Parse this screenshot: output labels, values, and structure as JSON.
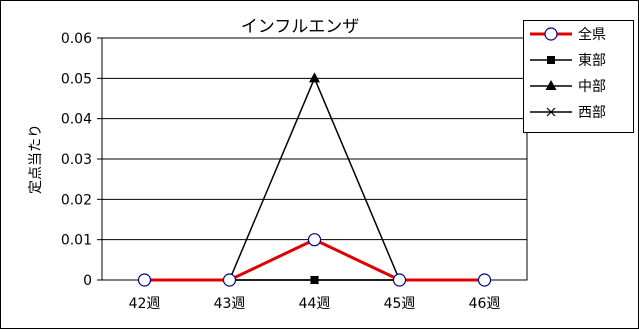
{
  "chart_data": {
    "type": "line",
    "title": "インフルエンザ",
    "ylabel": "定点当たり",
    "xlabel": "",
    "categories": [
      "42週",
      "43週",
      "44週",
      "45週",
      "46週"
    ],
    "ylim": [
      0,
      0.06
    ],
    "yticks": [
      "0",
      "0.01",
      "0.02",
      "0.03",
      "0.04",
      "0.05",
      "0.06"
    ],
    "grid": true,
    "legend_position": "top-right",
    "series": [
      {
        "name": "全県",
        "values": [
          0,
          0,
          0.01,
          0,
          0
        ],
        "color": "#e00000",
        "marker": "circle-open"
      },
      {
        "name": "東部",
        "values": [
          0,
          0,
          0,
          0,
          0
        ],
        "color": "#000000",
        "marker": "square"
      },
      {
        "name": "中部",
        "values": [
          0,
          0,
          0.05,
          0,
          0
        ],
        "color": "#000000",
        "marker": "triangle"
      },
      {
        "name": "西部",
        "values": [
          0,
          0,
          0,
          0,
          0
        ],
        "color": "#000000",
        "marker": "x"
      }
    ]
  }
}
